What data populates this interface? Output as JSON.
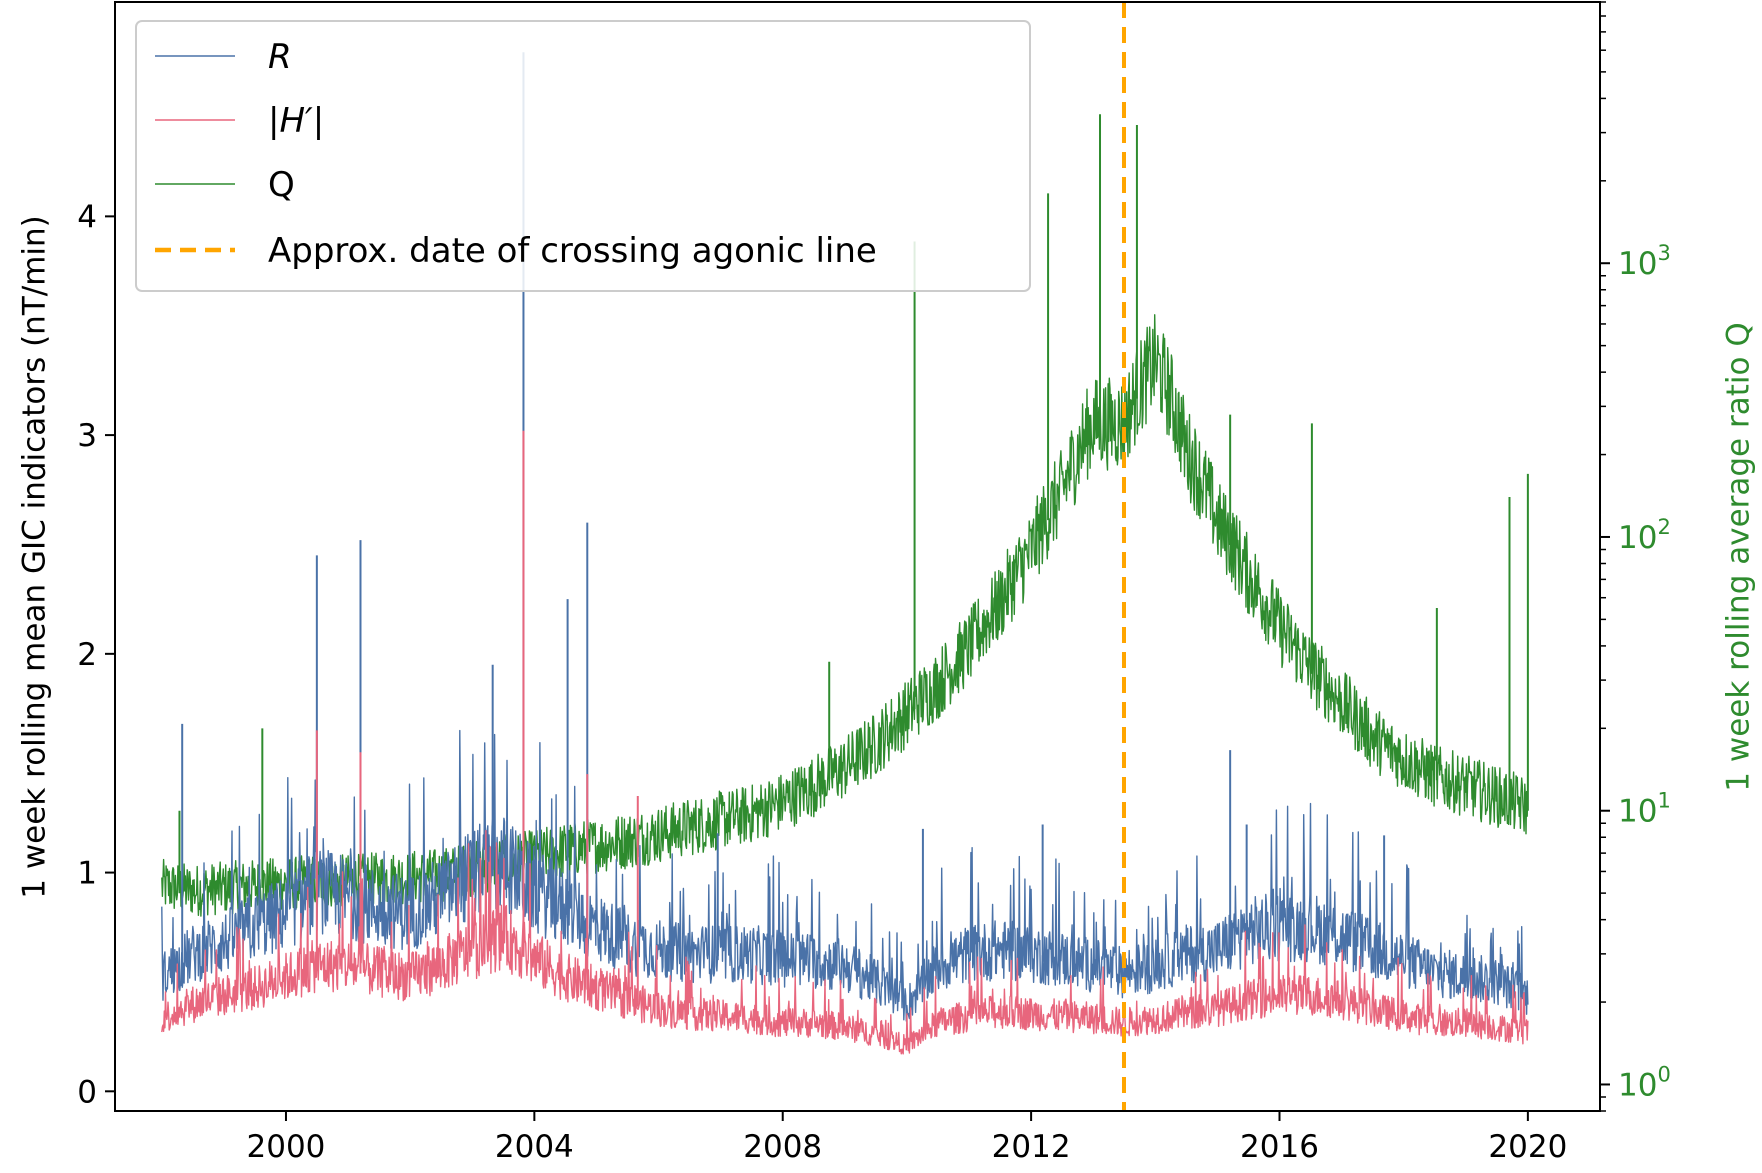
{
  "chart_data": {
    "type": "line",
    "xlabel": "",
    "ylabel": "1 week rolling mean GIC indicators (nT/min)",
    "ylabel_right": "1 week rolling average ratio Q",
    "x_ticks": [
      "2000",
      "2004",
      "2008",
      "2012",
      "2016",
      "2020"
    ],
    "y_ticks_left": [
      "0",
      "1",
      "2",
      "3",
      "4"
    ],
    "y_ticks_right": [
      {
        "base": "10",
        "exp": "0"
      },
      {
        "base": "10",
        "exp": "1"
      },
      {
        "base": "10",
        "exp": "2"
      },
      {
        "base": "10",
        "exp": "3"
      }
    ],
    "xlim": [
      "1997-04-01",
      "2021-03-01"
    ],
    "ylim_left": [
      -0.09,
      4.98
    ],
    "ylim_right_log": [
      0.8,
      9000
    ],
    "yscale_right": "log",
    "grid": false,
    "legend_position": "top-left",
    "legend": [
      {
        "label": "R",
        "style": "italic",
        "color": "#4a72a8",
        "dash": "solid"
      },
      {
        "label": "|H′|",
        "style": "italic",
        "color": "#e8667d",
        "dash": "solid"
      },
      {
        "label": "Q",
        "style": "normal",
        "color": "#2e8b2e",
        "dash": "solid"
      },
      {
        "label": "Approx. date of crossing agonic line",
        "style": "normal",
        "color": "#ffa500",
        "dash": "dashed"
      }
    ],
    "vline": {
      "x": "2013-07-01",
      "label": "Approx. date of crossing agonic line",
      "color": "#ffa500"
    },
    "series": [
      {
        "name": "R",
        "axis": "left",
        "color": "#4a72a8",
        "x": [
          "1998-01-01",
          "1998-07-01",
          "1999-01-01",
          "1999-07-01",
          "2000-01-01",
          "2000-07-01",
          "2001-01-01",
          "2001-07-01",
          "2002-01-01",
          "2002-07-01",
          "2003-01-01",
          "2003-07-01",
          "2004-01-01",
          "2004-07-01",
          "2005-01-01",
          "2005-07-01",
          "2006-01-01",
          "2006-07-01",
          "2007-01-01",
          "2007-07-01",
          "2008-01-01",
          "2008-07-01",
          "2009-01-01",
          "2009-07-01",
          "2010-01-01",
          "2010-07-01",
          "2011-01-01",
          "2011-07-01",
          "2012-01-01",
          "2012-07-01",
          "2013-01-01",
          "2013-07-01",
          "2014-01-01",
          "2014-07-01",
          "2015-01-01",
          "2015-07-01",
          "2016-01-01",
          "2016-07-01",
          "2017-01-01",
          "2017-07-01",
          "2018-01-01",
          "2018-07-01",
          "2019-01-01",
          "2019-07-01",
          "2020-01-01"
        ],
        "y": [
          0.5,
          0.6,
          0.65,
          0.72,
          0.78,
          0.88,
          0.85,
          0.8,
          0.78,
          0.85,
          0.95,
          1.0,
          0.88,
          0.8,
          0.72,
          0.65,
          0.62,
          0.6,
          0.6,
          0.6,
          0.58,
          0.57,
          0.55,
          0.48,
          0.38,
          0.55,
          0.6,
          0.62,
          0.6,
          0.58,
          0.55,
          0.52,
          0.55,
          0.6,
          0.62,
          0.7,
          0.72,
          0.72,
          0.68,
          0.62,
          0.58,
          0.52,
          0.5,
          0.48,
          0.42
        ],
        "spikes": [
          {
            "x": "1998-05-01",
            "y": 1.68
          },
          {
            "x": "2000-07-01",
            "y": 2.45
          },
          {
            "x": "2001-03-15",
            "y": 2.52
          },
          {
            "x": "2003-05-01",
            "y": 1.95
          },
          {
            "x": "2003-10-29",
            "y": 4.75
          },
          {
            "x": "2004-07-15",
            "y": 2.25
          },
          {
            "x": "2004-11-08",
            "y": 2.6
          },
          {
            "x": "2006-12-15",
            "y": 1.18
          },
          {
            "x": "2010-04-05",
            "y": 1.2
          },
          {
            "x": "2012-03-09",
            "y": 1.22
          },
          {
            "x": "2015-03-17",
            "y": 1.56
          },
          {
            "x": "2015-06-22",
            "y": 1.22
          },
          {
            "x": "2017-09-08",
            "y": 1.17
          }
        ]
      },
      {
        "name": "|H′|",
        "axis": "left",
        "color": "#e8667d",
        "x": [
          "1998-01-01",
          "1998-07-01",
          "1999-01-01",
          "1999-07-01",
          "2000-01-01",
          "2000-07-01",
          "2001-01-01",
          "2001-07-01",
          "2002-01-01",
          "2002-07-01",
          "2003-01-01",
          "2003-07-01",
          "2004-01-01",
          "2004-07-01",
          "2005-01-01",
          "2005-07-01",
          "2006-01-01",
          "2006-07-01",
          "2007-01-01",
          "2007-07-01",
          "2008-01-01",
          "2008-07-01",
          "2009-01-01",
          "2009-07-01",
          "2010-01-01",
          "2010-07-01",
          "2011-01-01",
          "2011-07-01",
          "2012-01-01",
          "2012-07-01",
          "2013-01-01",
          "2013-07-01",
          "2014-01-01",
          "2014-07-01",
          "2015-01-01",
          "2015-07-01",
          "2016-01-01",
          "2016-07-01",
          "2017-01-01",
          "2017-07-01",
          "2018-01-01",
          "2018-07-01",
          "2019-01-01",
          "2019-07-01",
          "2020-01-01"
        ],
        "y": [
          0.32,
          0.38,
          0.42,
          0.45,
          0.5,
          0.55,
          0.55,
          0.52,
          0.5,
          0.55,
          0.62,
          0.68,
          0.58,
          0.5,
          0.45,
          0.4,
          0.36,
          0.34,
          0.33,
          0.32,
          0.3,
          0.3,
          0.28,
          0.25,
          0.2,
          0.3,
          0.33,
          0.35,
          0.34,
          0.33,
          0.32,
          0.3,
          0.32,
          0.34,
          0.36,
          0.4,
          0.42,
          0.42,
          0.4,
          0.36,
          0.33,
          0.3,
          0.3,
          0.28,
          0.26
        ],
        "spikes": [
          {
            "x": "2000-07-01",
            "y": 1.65
          },
          {
            "x": "2001-03-15",
            "y": 1.55
          },
          {
            "x": "2003-10-29",
            "y": 3.02
          },
          {
            "x": "2004-11-08",
            "y": 1.45
          },
          {
            "x": "2005-09-01",
            "y": 1.35
          }
        ]
      },
      {
        "name": "Q",
        "axis": "right",
        "color": "#2e8b2e",
        "x": [
          "1998-01-01",
          "1998-07-01",
          "1999-01-01",
          "1999-07-01",
          "2000-01-01",
          "2000-07-01",
          "2001-01-01",
          "2001-07-01",
          "2002-01-01",
          "2002-07-01",
          "2003-01-01",
          "2003-07-01",
          "2004-01-01",
          "2004-07-01",
          "2005-01-01",
          "2005-07-01",
          "2006-01-01",
          "2006-07-01",
          "2007-01-01",
          "2007-07-01",
          "2008-01-01",
          "2008-07-01",
          "2009-01-01",
          "2009-07-01",
          "2010-01-01",
          "2010-07-01",
          "2011-01-01",
          "2011-07-01",
          "2012-01-01",
          "2012-07-01",
          "2013-01-01",
          "2013-07-01",
          "2014-01-01",
          "2014-07-01",
          "2015-01-01",
          "2015-07-01",
          "2016-01-01",
          "2016-07-01",
          "2017-01-01",
          "2017-07-01",
          "2018-01-01",
          "2018-07-01",
          "2019-01-01",
          "2019-07-01",
          "2020-01-01"
        ],
        "y": [
          5.2,
          5.0,
          5.1,
          5.2,
          5.3,
          5.4,
          5.4,
          5.5,
          5.6,
          5.7,
          6.0,
          6.3,
          6.6,
          7.0,
          7.3,
          7.6,
          8.0,
          8.5,
          9.0,
          9.5,
          10.5,
          12,
          14,
          17,
          22,
          28,
          38,
          55,
          85,
          140,
          250,
          250,
          420,
          200,
          110,
          70,
          45,
          32,
          24,
          18,
          15,
          13,
          12,
          11,
          10
        ],
        "spikes": [
          {
            "x": "1998-04-15",
            "y": 10
          },
          {
            "x": "1999-08-15",
            "y": 20
          },
          {
            "x": "2008-10-01",
            "y": 35
          },
          {
            "x": "2010-02-15",
            "y": 1200
          },
          {
            "x": "2012-04-10",
            "y": 1800
          },
          {
            "x": "2013-02-10",
            "y": 3500
          },
          {
            "x": "2013-09-15",
            "y": 3200
          },
          {
            "x": "2015-03-17",
            "y": 280
          },
          {
            "x": "2016-07-10",
            "y": 260
          },
          {
            "x": "2018-07-15",
            "y": 55
          },
          {
            "x": "2019-09-15",
            "y": 140
          },
          {
            "x": "2020-01-01",
            "y": 170
          }
        ]
      }
    ]
  }
}
